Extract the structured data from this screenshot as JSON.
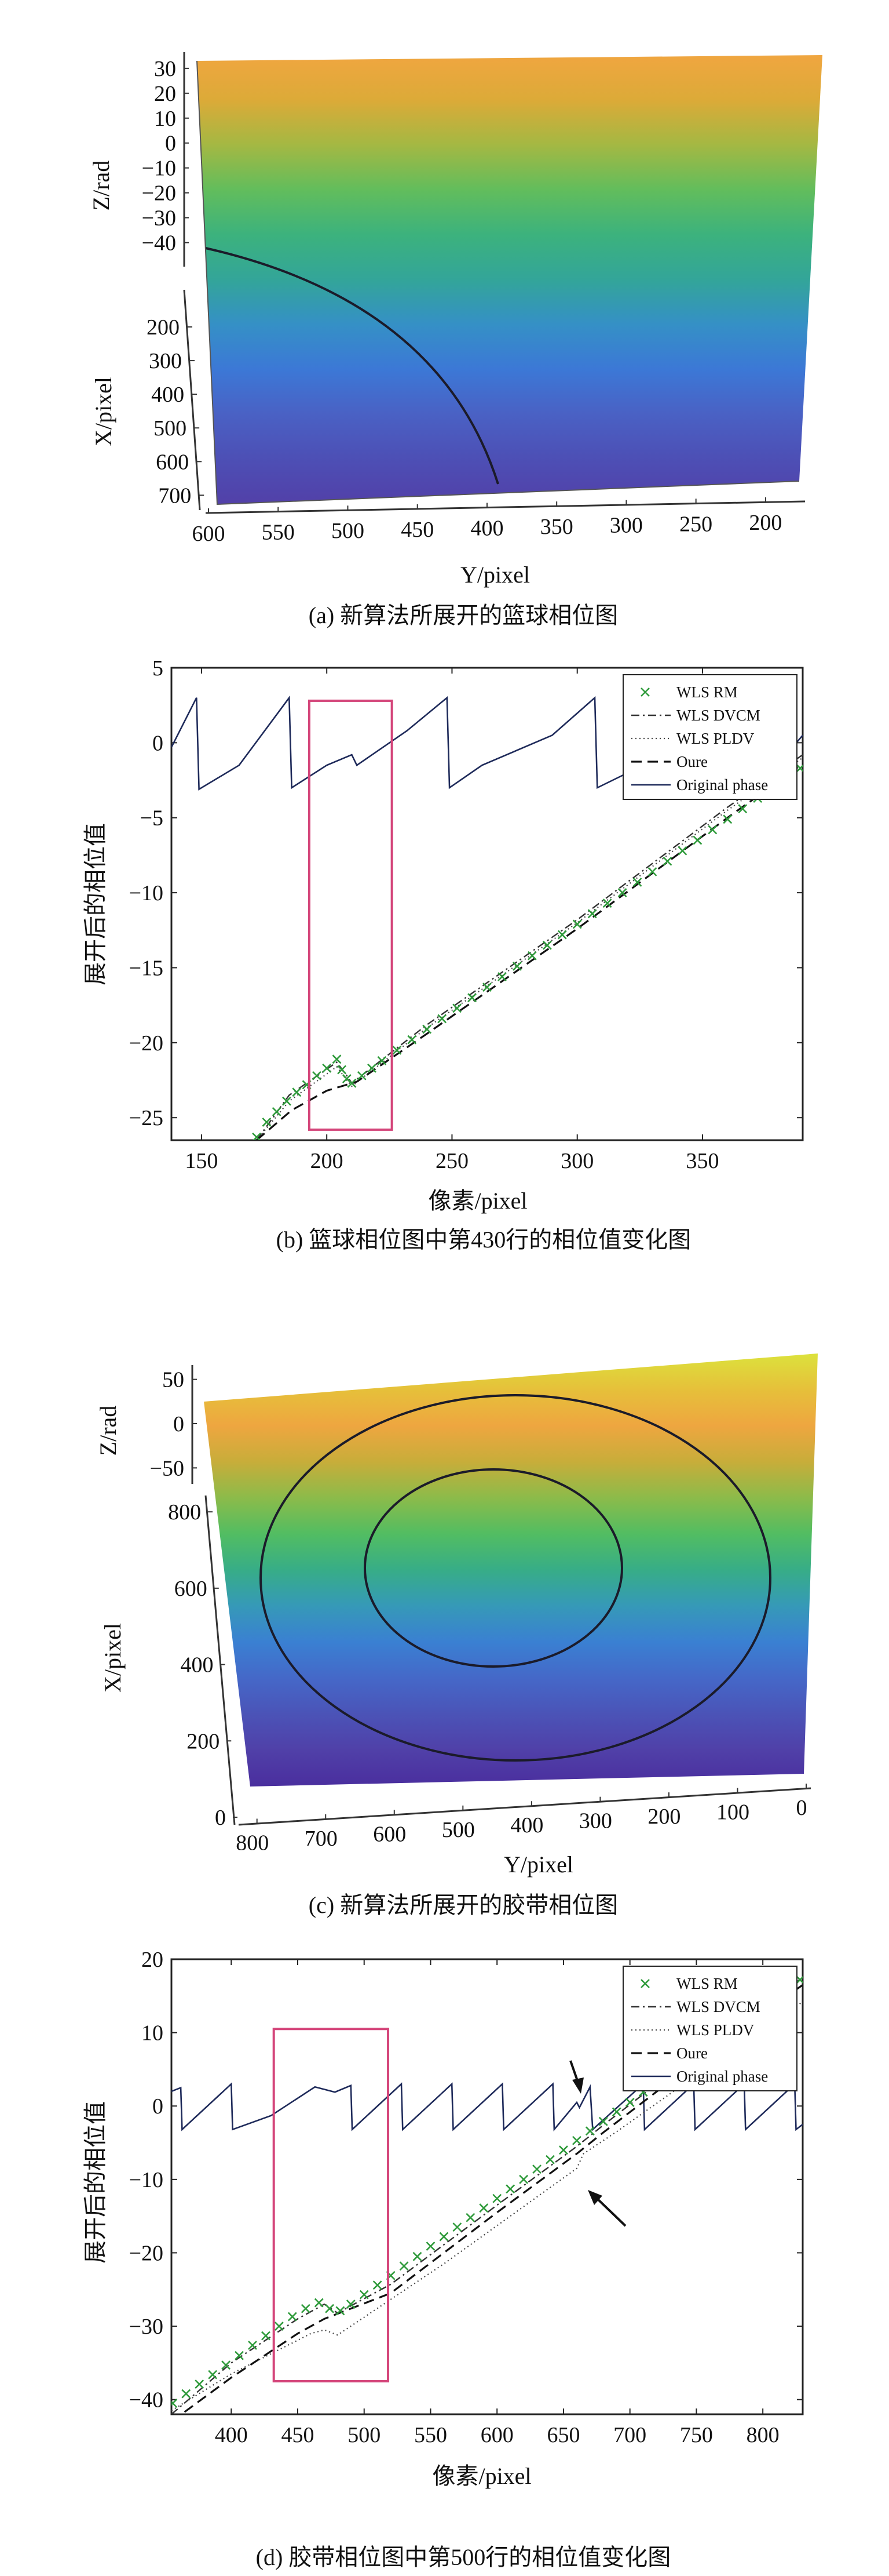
{
  "chart_data": [
    {
      "type": "surface",
      "caption": "(a) 新算法所展开的篮球相位图",
      "zlabel": "Z/rad",
      "xlabel": "X/pixel",
      "ylabel": "Y/pixel",
      "z_ticks": [
        "30",
        "20",
        "10",
        "0",
        "−10",
        "−20",
        "−30",
        "−40"
      ],
      "x_ticks": [
        "200",
        "300",
        "400",
        "500",
        "600",
        "700"
      ],
      "y_ticks": [
        "600",
        "550",
        "500",
        "450",
        "400",
        "350",
        "300",
        "250",
        "200"
      ],
      "zlim": [
        -45,
        33
      ],
      "ylim": [
        600,
        180
      ],
      "xlim": [
        150,
        720
      ],
      "colors": [
        "#f0a640",
        "#dcaa38",
        "#a4b843",
        "#62bd5c",
        "#3cb27d",
        "#33a599",
        "#3590c6",
        "#3c78d6",
        "#4a61c4",
        "#4d4fb5",
        "#5240a8"
      ]
    },
    {
      "type": "line",
      "caption": "(b) 篮球相位图中第430行的相位值变化图",
      "xlabel": "像素/pixel",
      "ylabel": "展开后的相位值",
      "xlim": [
        138,
        390
      ],
      "ylim": [
        -26.5,
        5
      ],
      "x_ticks": [
        "150",
        "200",
        "250",
        "300",
        "350"
      ],
      "y_ticks": [
        "5",
        "0",
        "−5",
        "−10",
        "−15",
        "−20",
        "−25"
      ],
      "legend": [
        "WLS RM",
        "WLS DVCM",
        "WLS PLDV",
        "Oure",
        "Original phase"
      ],
      "legend_position": "top-right",
      "highlight_box": {
        "x": [
          193,
          226
        ],
        "y": [
          -25.8,
          2.8
        ],
        "color": "#d4457a"
      },
      "series": [
        {
          "name": "Original phase",
          "style": "solid",
          "points": [
            [
              138,
              -0.3
            ],
            [
              148,
              3.0
            ],
            [
              149,
              -3.1
            ],
            [
              165,
              -1.5
            ],
            [
              185,
              3.0
            ],
            [
              186,
              -3.0
            ],
            [
              200,
              -1.5
            ],
            [
              210,
              -0.8
            ],
            [
              212,
              -1.5
            ],
            [
              232,
              0.8
            ],
            [
              248,
              3.0
            ],
            [
              249,
              -3.0
            ],
            [
              262,
              -1.5
            ],
            [
              290,
              0.5
            ],
            [
              307,
              3.0
            ],
            [
              308,
              -3.0
            ],
            [
              330,
              -1.2
            ],
            [
              355,
              1.5
            ],
            [
              364,
              3.0
            ],
            [
              365,
              -3.0
            ],
            [
              380,
              -1.5
            ],
            [
              390,
              0.5
            ]
          ]
        },
        {
          "name": "WLS DVCM",
          "style": "dashdot",
          "points": [
            [
              172,
              -26.5
            ],
            [
              185,
              -23.5
            ],
            [
              204,
              -21.3
            ],
            [
              208,
              -22.2
            ],
            [
              210,
              -22.7
            ],
            [
              240,
              -18.8
            ],
            [
              300,
              -11.8
            ],
            [
              360,
              -4.3
            ],
            [
              390,
              -0.8
            ]
          ]
        },
        {
          "name": "WLS PLDV",
          "style": "dotted",
          "points": [
            [
              172,
              -26.5
            ],
            [
              185,
              -23.9
            ],
            [
              204,
              -21.6
            ],
            [
              208,
              -22.5
            ],
            [
              210,
              -22.9
            ],
            [
              240,
              -19.0
            ],
            [
              300,
              -12.0
            ],
            [
              360,
              -4.5
            ],
            [
              390,
              -1.0
            ]
          ]
        },
        {
          "name": "Oure",
          "style": "dashed",
          "points": [
            [
              172,
              -26.5
            ],
            [
              186,
              -24.5
            ],
            [
              200,
              -23.2
            ],
            [
              212,
              -22.6
            ],
            [
              240,
              -19.4
            ],
            [
              300,
              -12.4
            ],
            [
              360,
              -5.0
            ],
            [
              390,
              -1.4
            ]
          ]
        },
        {
          "name": "WLS RM",
          "style": "marker-x",
          "points": [
            [
              172,
              -26.3
            ],
            [
              176,
              -25.3
            ],
            [
              180,
              -24.6
            ],
            [
              184,
              -23.9
            ],
            [
              188,
              -23.3
            ],
            [
              192,
              -22.8
            ],
            [
              196,
              -22.2
            ],
            [
              200,
              -21.7
            ],
            [
              204,
              -21.1
            ],
            [
              206,
              -21.8
            ],
            [
              208,
              -22.4
            ],
            [
              210,
              -22.7
            ],
            [
              214,
              -22.2
            ],
            [
              218,
              -21.7
            ],
            [
              222,
              -21.2
            ],
            [
              228,
              -20.5
            ],
            [
              234,
              -19.8
            ],
            [
              240,
              -19.1
            ],
            [
              246,
              -18.4
            ],
            [
              252,
              -17.7
            ],
            [
              258,
              -17.0
            ],
            [
              264,
              -16.3
            ],
            [
              270,
              -15.6
            ],
            [
              276,
              -14.9
            ],
            [
              282,
              -14.2
            ],
            [
              288,
              -13.5
            ],
            [
              294,
              -12.8
            ],
            [
              300,
              -12.1
            ],
            [
              306,
              -11.4
            ],
            [
              312,
              -10.7
            ],
            [
              318,
              -10.0
            ],
            [
              324,
              -9.3
            ],
            [
              330,
              -8.6
            ],
            [
              336,
              -7.9
            ],
            [
              342,
              -7.2
            ],
            [
              348,
              -6.5
            ],
            [
              354,
              -5.8
            ],
            [
              360,
              -5.1
            ],
            [
              366,
              -4.4
            ],
            [
              372,
              -3.7
            ],
            [
              378,
              -3.0
            ],
            [
              384,
              -2.3
            ],
            [
              389,
              -1.7
            ]
          ]
        }
      ]
    },
    {
      "type": "surface",
      "caption": "(c) 新算法所展开的胶带相位图",
      "zlabel": "Z/rad",
      "xlabel": "X/pixel",
      "ylabel": "Y/pixel",
      "z_ticks": [
        "50",
        "0",
        "−50"
      ],
      "x_ticks": [
        "800",
        "600",
        "400",
        "200",
        "0"
      ],
      "y_ticks": [
        "800",
        "700",
        "600",
        "500",
        "400",
        "300",
        "200",
        "100",
        "0"
      ],
      "zlim": [
        -55,
        55
      ],
      "xlim": [
        0,
        820
      ],
      "ylim": [
        820,
        0
      ],
      "colors": [
        "#dce23c",
        "#e6c03a",
        "#eea640",
        "#c8ad3a",
        "#8cbb4a",
        "#52bd62",
        "#37ad87",
        "#3699b8",
        "#3a80d2",
        "#4568c8",
        "#4b53b7",
        "#5040a8",
        "#4a2e9e"
      ]
    },
    {
      "type": "line",
      "caption": "(d) 胶带相位图中第500行的相位值变化图",
      "xlabel": "像素/pixel",
      "ylabel": "展开后的相位值",
      "xlim": [
        355,
        830
      ],
      "ylim": [
        -42,
        20
      ],
      "x_ticks": [
        "400",
        "450",
        "500",
        "550",
        "600",
        "650",
        "700",
        "750",
        "800"
      ],
      "y_ticks": [
        "20",
        "10",
        "0",
        "−10",
        "−20",
        "−30",
        "−40"
      ],
      "legend": [
        "WLS RM",
        "WLS DVCM",
        "WLS PLDV",
        "Oure",
        "Original phase"
      ],
      "legend_position": "top-right",
      "highlight_box": {
        "x": [
          432,
          518
        ],
        "y": [
          -37.5,
          10.5
        ],
        "color": "#d4457a"
      },
      "series": [
        {
          "name": "Original phase",
          "style": "solid",
          "points": [
            [
              355,
              2.0
            ],
            [
              362,
              2.5
            ],
            [
              363,
              -3.2
            ],
            [
              400,
              3.0
            ],
            [
              401,
              -3.2
            ],
            [
              430,
              -1.3
            ],
            [
              463,
              2.6
            ],
            [
              478,
              1.9
            ],
            [
              490,
              2.8
            ],
            [
              491,
              -3.2
            ],
            [
              528,
              3.0
            ],
            [
              529,
              -3.2
            ],
            [
              566,
              3.0
            ],
            [
              567,
              -3.2
            ],
            [
              604,
              3.0
            ],
            [
              605,
              -3.2
            ],
            [
              642,
              3.0
            ],
            [
              643,
              -3.2
            ],
            [
              660,
              0.5
            ],
            [
              662,
              -0.2
            ],
            [
              670,
              2.6
            ],
            [
              672,
              -3.2
            ],
            [
              710,
              3.0
            ],
            [
              711,
              -3.2
            ],
            [
              748,
              3.0
            ],
            [
              749,
              -3.2
            ],
            [
              786,
              3.0
            ],
            [
              787,
              -3.2
            ],
            [
              824,
              3.0
            ],
            [
              825,
              -3.2
            ],
            [
              830,
              -2.5
            ]
          ]
        },
        {
          "name": "WLS DVCM",
          "style": "dashdot",
          "points": [
            [
              355,
              -42
            ],
            [
              400,
              -35
            ],
            [
              450,
              -29
            ],
            [
              470,
              -27
            ],
            [
              480,
              -28.2
            ],
            [
              520,
              -24.3
            ],
            [
              600,
              -13.5
            ],
            [
              660,
              -5.5
            ],
            [
              680,
              -2.6
            ],
            [
              760,
              8.6
            ],
            [
              830,
              17.5
            ]
          ]
        },
        {
          "name": "WLS PLDV",
          "style": "dotted",
          "points": [
            [
              355,
              -41.5
            ],
            [
              400,
              -36.5
            ],
            [
              460,
              -31.0
            ],
            [
              470,
              -30.5
            ],
            [
              480,
              -31.2
            ],
            [
              560,
              -21.5
            ],
            [
              660,
              -8.5
            ],
            [
              665,
              -6.5
            ],
            [
              690,
              -3.5
            ],
            [
              760,
              5.5
            ],
            [
              830,
              14.2
            ]
          ]
        },
        {
          "name": "Oure",
          "style": "dashed",
          "points": [
            [
              355,
              -43
            ],
            [
              400,
              -37
            ],
            [
              450,
              -31
            ],
            [
              470,
              -29
            ],
            [
              520,
              -25.5
            ],
            [
              600,
              -14.5
            ],
            [
              660,
              -6.5
            ],
            [
              680,
              -3.6
            ],
            [
              760,
              7.5
            ],
            [
              830,
              16.5
            ]
          ]
        },
        {
          "name": "WLS RM",
          "style": "marker-x",
          "points": [
            [
              356,
              -40.5
            ],
            [
              366,
              -39.2
            ],
            [
              376,
              -37.9
            ],
            [
              386,
              -36.6
            ],
            [
              396,
              -35.3
            ],
            [
              406,
              -34.0
            ],
            [
              416,
              -32.6
            ],
            [
              426,
              -31.3
            ],
            [
              436,
              -30.0
            ],
            [
              446,
              -28.7
            ],
            [
              456,
              -27.6
            ],
            [
              466,
              -26.8
            ],
            [
              474,
              -27.6
            ],
            [
              482,
              -27.9
            ],
            [
              490,
              -27.0
            ],
            [
              500,
              -25.7
            ],
            [
              510,
              -24.4
            ],
            [
              520,
              -23.1
            ],
            [
              530,
              -21.8
            ],
            [
              540,
              -20.5
            ],
            [
              550,
              -19.1
            ],
            [
              560,
              -17.8
            ],
            [
              570,
              -16.5
            ],
            [
              580,
              -15.2
            ],
            [
              590,
              -13.9
            ],
            [
              600,
              -12.6
            ],
            [
              610,
              -11.3
            ],
            [
              620,
              -10.0
            ],
            [
              630,
              -8.6
            ],
            [
              640,
              -7.3
            ],
            [
              650,
              -6.0
            ],
            [
              660,
              -4.7
            ],
            [
              670,
              -3.4
            ],
            [
              680,
              -2.1
            ],
            [
              690,
              -0.8
            ],
            [
              700,
              0.5
            ],
            [
              710,
              1.9
            ],
            [
              720,
              3.2
            ],
            [
              730,
              4.5
            ],
            [
              740,
              5.8
            ],
            [
              750,
              7.1
            ],
            [
              760,
              8.4
            ],
            [
              770,
              9.7
            ],
            [
              780,
              11.0
            ],
            [
              790,
              12.4
            ],
            [
              800,
              13.7
            ],
            [
              810,
              15.0
            ],
            [
              820,
              16.3
            ],
            [
              828,
              17.2
            ]
          ]
        }
      ]
    }
  ]
}
